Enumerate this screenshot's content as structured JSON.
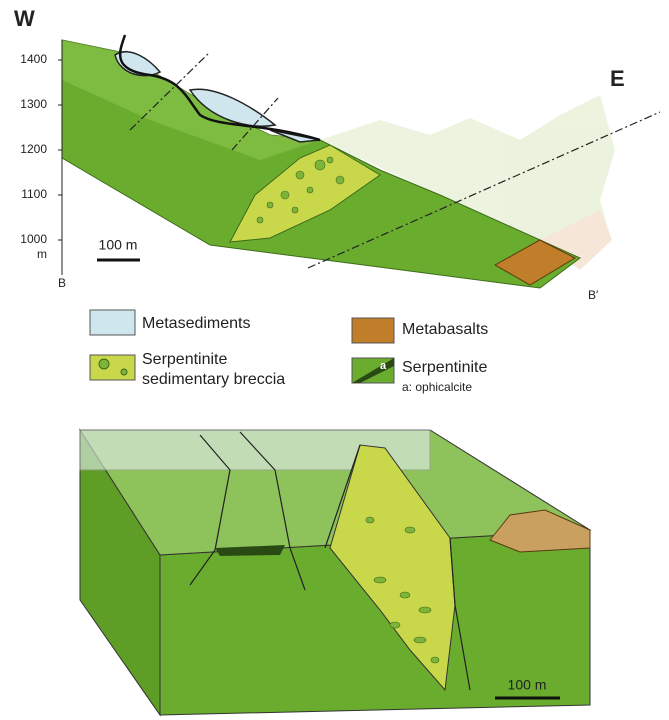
{
  "header": {
    "west": "W",
    "east": "E"
  },
  "elevation_axis": {
    "labels": [
      "1400",
      "1300",
      "1200",
      "1100",
      "1000"
    ],
    "unit": "m"
  },
  "section": {
    "scale": "100 m",
    "start": "B",
    "end": "B′"
  },
  "legend": [
    {
      "label": "Metasediments"
    },
    {
      "label": "Metabasalts"
    },
    {
      "label": [
        "Serpentinite",
        "sedimentary breccia"
      ]
    },
    {
      "label": "Serpentinite",
      "sublabel": "a: ophicalcite",
      "marker": "a"
    }
  ],
  "block": {
    "scale": "100 m"
  }
}
